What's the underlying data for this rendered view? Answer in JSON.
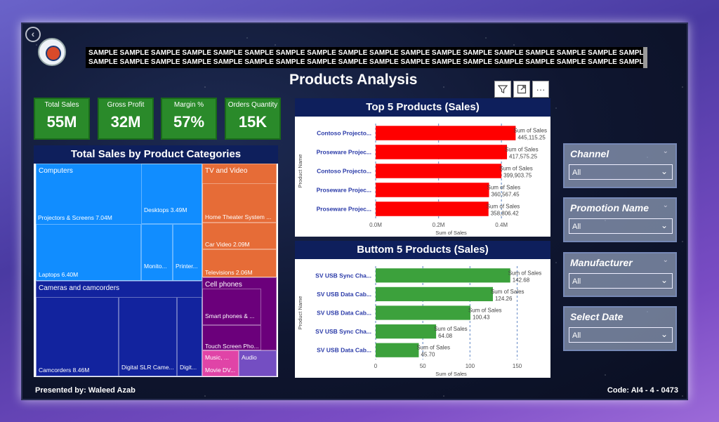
{
  "banner": {
    "line1": "SAMPLE SAMPLE SAMPLE SAMPLE SAMPLE SAMPLE SAMPLE SAMPLE SAMPLE SAMPLE SAMPLE SAMPLE SAMPLE SAMPLE SAMPLE SAMPLE SAMPLE SAMPLE SAMPLE SAMPLE",
    "line2": "SAMPLE SAMPLE SAMPLE SAMPLE SAMPLE SAMPLE SAMPLE SAMPLE SAMPLE SAMPLE SAMPLE SAMPLE SAMPLE SAMPLE SAMPLE SAMPLE SAMPLE SAMPLE SAMPLE SAMPLE"
  },
  "title": "Products Analysis",
  "toolbar": {
    "filter_icon": "filter-icon",
    "focus_icon": "focus-mode-icon",
    "more_icon": "more-options-icon",
    "more_label": "···"
  },
  "kpis": [
    {
      "label": "Total Sales",
      "value": "55M"
    },
    {
      "label": "Gross Profit",
      "value": "32M"
    },
    {
      "label": "Margin %",
      "value": "57%"
    },
    {
      "label": "Orders Quantity",
      "value": "15K"
    }
  ],
  "treemap": {
    "title": "Total Sales by Product Categories",
    "computers": "Computers",
    "projectors": "Projectors & Screens 7.04M",
    "desktops": "Desktops 3.49M",
    "laptops": "Laptops 6.40M",
    "monitors": "Monito...",
    "printers": "Printer...",
    "tv": "TV and Video",
    "home_theater": "Home Theater System ...",
    "car_video": "Car Video 2.09M",
    "televisions": "Televisions 2.06M",
    "cameras": "Cameras and camcorders",
    "camcorders": "Camcorders 8.46M",
    "dslr": "Digital SLR Came...",
    "digital": "Digit...",
    "cell_phones": "Cell phones",
    "smart_phones": "Smart phones & ...",
    "touch_screen": "Touch Screen Pho...",
    "music": "Music, ...",
    "movie": "Movie DV...",
    "audio": "Audio",
    "colors": {
      "computers": "#118dff",
      "tv": "#e66c37",
      "cameras": "#12239e",
      "cell": "#6b007b",
      "music": "#e044a7",
      "audio": "#744ec2"
    }
  },
  "slicers": [
    {
      "title": "Channel",
      "value": "All"
    },
    {
      "title": "Promotion Name",
      "value": "All"
    },
    {
      "title": "Manufacturer",
      "value": "All"
    },
    {
      "title": "Select Date",
      "value": "All"
    }
  ],
  "footer": {
    "presenter": "Presented by: Waleed Azab",
    "code": "Code: AI4 - 4 - 0473"
  },
  "chart_data": [
    {
      "type": "bar",
      "orientation": "horizontal",
      "title": "Top 5 Products (Sales)",
      "xlabel": "Sum of Sales",
      "ylabel": "Product Name",
      "categories": [
        "Contoso Projecto...",
        "Proseware Projec...",
        "Contoso Projecto...",
        "Proseware Projec...",
        "Proseware Projec..."
      ],
      "values": [
        445115.25,
        417575.25,
        399903.75,
        360567.45,
        358806.42
      ],
      "data_labels": [
        "445,115.25",
        "417,575.25",
        "399,903.75",
        "360,567.45",
        "358,806.42"
      ],
      "data_label_prefix": "Sum of Sales",
      "xlim": [
        0,
        480000
      ],
      "xticks": [
        0,
        200000,
        400000
      ],
      "xtick_labels": [
        "0.0M",
        "0.2M",
        "0.4M"
      ],
      "color": "#ff0000",
      "grid": true
    },
    {
      "type": "bar",
      "orientation": "horizontal",
      "title": "Buttom 5 Products (Sales)",
      "xlabel": "Sum of Sales",
      "ylabel": "Product Name",
      "categories": [
        "SV USB Sync Cha...",
        "SV USB Data Cab...",
        "SV USB Data Cab...",
        "SV USB Sync Cha...",
        "SV USB Data Cab..."
      ],
      "values": [
        142.68,
        124.26,
        100.43,
        64.08,
        45.7
      ],
      "data_labels": [
        "142.68",
        "124.26",
        "100.43",
        "64.08",
        "45.70"
      ],
      "data_label_prefix": "Sum of Sales",
      "xlim": [
        0,
        160
      ],
      "xticks": [
        0,
        50,
        100,
        150
      ],
      "xtick_labels": [
        "0",
        "50",
        "100",
        "150"
      ],
      "color": "#3ca13c",
      "grid": true
    }
  ]
}
